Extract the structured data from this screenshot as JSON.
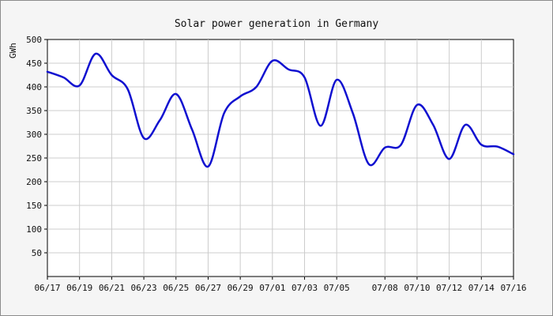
{
  "chart_data": {
    "type": "line",
    "title": "Solar power generation in Germany",
    "ylabel": "GWh",
    "xlabel": "",
    "ylim": [
      0,
      500
    ],
    "y_ticks": [
      50,
      100,
      150,
      200,
      250,
      300,
      350,
      400,
      450,
      500
    ],
    "x_tick_labels": [
      "06/17",
      "06/19",
      "06/21",
      "06/23",
      "06/25",
      "06/27",
      "06/29",
      "07/01",
      "07/03",
      "07/05",
      "07/08",
      "07/10",
      "07/12",
      "07/14",
      "07/16"
    ],
    "grid": true,
    "legend": "none",
    "series": [
      {
        "color": "#1010d0",
        "points": [
          {
            "x": "06/17",
            "y": 432
          },
          {
            "x": "06/18",
            "y": 420
          },
          {
            "x": "06/19",
            "y": 403
          },
          {
            "x": "06/20",
            "y": 470
          },
          {
            "x": "06/21",
            "y": 425
          },
          {
            "x": "06/22",
            "y": 395
          },
          {
            "x": "06/23",
            "y": 292
          },
          {
            "x": "06/24",
            "y": 330
          },
          {
            "x": "06/25",
            "y": 385
          },
          {
            "x": "06/26",
            "y": 310
          },
          {
            "x": "06/27",
            "y": 232
          },
          {
            "x": "06/28",
            "y": 345
          },
          {
            "x": "06/29",
            "y": 380
          },
          {
            "x": "06/30",
            "y": 400
          },
          {
            "x": "07/01",
            "y": 455
          },
          {
            "x": "07/02",
            "y": 437
          },
          {
            "x": "07/03",
            "y": 420
          },
          {
            "x": "07/04",
            "y": 318
          },
          {
            "x": "07/05",
            "y": 415
          },
          {
            "x": "07/06",
            "y": 345
          },
          {
            "x": "07/07",
            "y": 237
          },
          {
            "x": "07/08",
            "y": 272
          },
          {
            "x": "07/09",
            "y": 278
          },
          {
            "x": "07/10",
            "y": 362
          },
          {
            "x": "07/11",
            "y": 320
          },
          {
            "x": "07/12",
            "y": 248
          },
          {
            "x": "07/13",
            "y": 320
          },
          {
            "x": "07/14",
            "y": 278
          },
          {
            "x": "07/15",
            "y": 274
          },
          {
            "x": "07/16",
            "y": 258
          }
        ]
      }
    ]
  }
}
